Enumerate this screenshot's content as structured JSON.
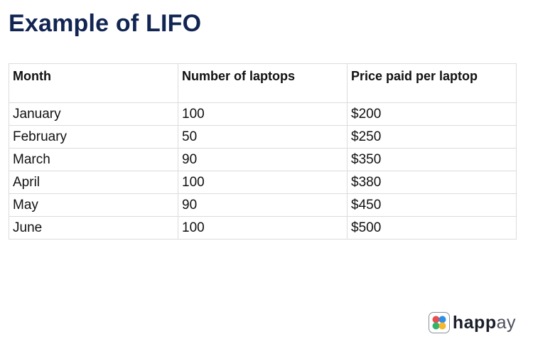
{
  "title": "Example of LIFO",
  "table": {
    "headers": [
      "Month",
      "Number of laptops",
      "Price paid per laptop"
    ],
    "rows": [
      [
        "January",
        "100",
        "$200"
      ],
      [
        "February",
        "50",
        "$250"
      ],
      [
        "March",
        "90",
        "$350"
      ],
      [
        "April",
        "100",
        "$380"
      ],
      [
        "May",
        "90",
        "$450"
      ],
      [
        "June",
        "100",
        "$500"
      ]
    ]
  },
  "brand": {
    "name_bold": "happ",
    "name_light": "ay",
    "logo_colors": [
      "#e94d4d",
      "#2f8fe8",
      "#33b36b",
      "#f5b82e"
    ]
  }
}
